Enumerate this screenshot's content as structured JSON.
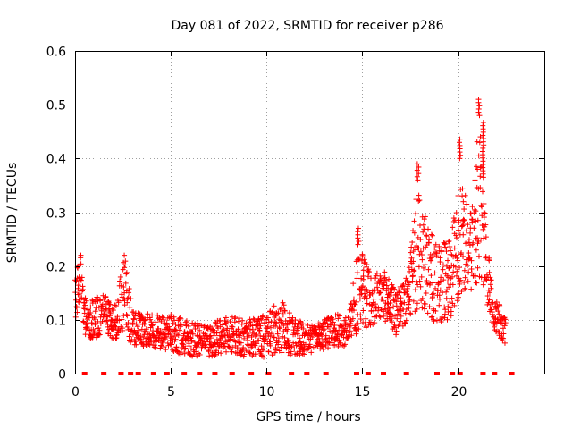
{
  "chart_data": {
    "type": "scatter",
    "title": "Day 081 of 2022, SRMTID for receiver p286",
    "xlabel": "GPS time / hours",
    "ylabel": "SRMTID / TECUs",
    "xlim": [
      0,
      24.5
    ],
    "ylim": [
      0,
      0.6
    ],
    "xticks": [
      0,
      5,
      10,
      15,
      20
    ],
    "xtick_labels": [
      "0",
      "5",
      "10",
      "15",
      "20"
    ],
    "yticks": [
      0,
      0.1,
      0.2,
      0.3,
      0.4,
      0.5,
      0.6
    ],
    "ytick_labels": [
      "0",
      "0.1",
      "0.2",
      "0.3",
      "0.4",
      "0.5",
      "0.6"
    ],
    "grid": true,
    "marker": "+",
    "color": "#ff0000",
    "envelope": [
      {
        "x": 0.0,
        "low": 0.1,
        "high": 0.19
      },
      {
        "x": 0.3,
        "low": 0.12,
        "high": 0.22
      },
      {
        "x": 0.6,
        "low": 0.06,
        "high": 0.14
      },
      {
        "x": 1.0,
        "low": 0.06,
        "high": 0.14
      },
      {
        "x": 1.5,
        "low": 0.08,
        "high": 0.15
      },
      {
        "x": 2.0,
        "low": 0.06,
        "high": 0.12
      },
      {
        "x": 2.6,
        "low": 0.08,
        "high": 0.22
      },
      {
        "x": 3.0,
        "low": 0.05,
        "high": 0.12
      },
      {
        "x": 4.0,
        "low": 0.05,
        "high": 0.11
      },
      {
        "x": 5.0,
        "low": 0.04,
        "high": 0.11
      },
      {
        "x": 6.0,
        "low": 0.03,
        "high": 0.1
      },
      {
        "x": 7.0,
        "low": 0.03,
        "high": 0.09
      },
      {
        "x": 8.0,
        "low": 0.04,
        "high": 0.11
      },
      {
        "x": 9.0,
        "low": 0.03,
        "high": 0.1
      },
      {
        "x": 10.0,
        "low": 0.03,
        "high": 0.11
      },
      {
        "x": 10.7,
        "low": 0.04,
        "high": 0.14
      },
      {
        "x": 11.5,
        "low": 0.03,
        "high": 0.1
      },
      {
        "x": 12.5,
        "low": 0.04,
        "high": 0.09
      },
      {
        "x": 13.5,
        "low": 0.05,
        "high": 0.11
      },
      {
        "x": 14.3,
        "low": 0.05,
        "high": 0.11
      },
      {
        "x": 14.8,
        "low": 0.08,
        "high": 0.24
      },
      {
        "x": 15.5,
        "low": 0.09,
        "high": 0.18
      },
      {
        "x": 16.0,
        "low": 0.1,
        "high": 0.2
      },
      {
        "x": 16.8,
        "low": 0.07,
        "high": 0.15
      },
      {
        "x": 17.4,
        "low": 0.1,
        "high": 0.19
      },
      {
        "x": 17.9,
        "low": 0.12,
        "high": 0.36
      },
      {
        "x": 18.6,
        "low": 0.1,
        "high": 0.26
      },
      {
        "x": 19.2,
        "low": 0.09,
        "high": 0.24
      },
      {
        "x": 19.7,
        "low": 0.11,
        "high": 0.27
      },
      {
        "x": 20.1,
        "low": 0.14,
        "high": 0.4
      },
      {
        "x": 20.6,
        "low": 0.15,
        "high": 0.28
      },
      {
        "x": 21.1,
        "low": 0.17,
        "high": 0.48
      },
      {
        "x": 21.5,
        "low": 0.12,
        "high": 0.25
      },
      {
        "x": 21.9,
        "low": 0.08,
        "high": 0.15
      },
      {
        "x": 22.5,
        "low": 0.05,
        "high": 0.1
      }
    ],
    "peaks": [
      {
        "x": 0.3,
        "y": 0.22
      },
      {
        "x": 2.6,
        "y": 0.225
      },
      {
        "x": 14.8,
        "y": 0.27
      },
      {
        "x": 17.9,
        "y": 0.395
      },
      {
        "x": 20.1,
        "y": 0.44
      },
      {
        "x": 21.1,
        "y": 0.51
      },
      {
        "x": 21.3,
        "y": 0.47
      }
    ],
    "zero_points": [
      0.5,
      1.5,
      2.4,
      2.9,
      3.3,
      4.1,
      4.8,
      5.7,
      6.5,
      7.3,
      8.2,
      9.2,
      10.1,
      11.3,
      12.1,
      13.1,
      14.7,
      15.3,
      16.1,
      17.3,
      18.9,
      19.7,
      20.1,
      21.3,
      21.9,
      22.8
    ]
  }
}
